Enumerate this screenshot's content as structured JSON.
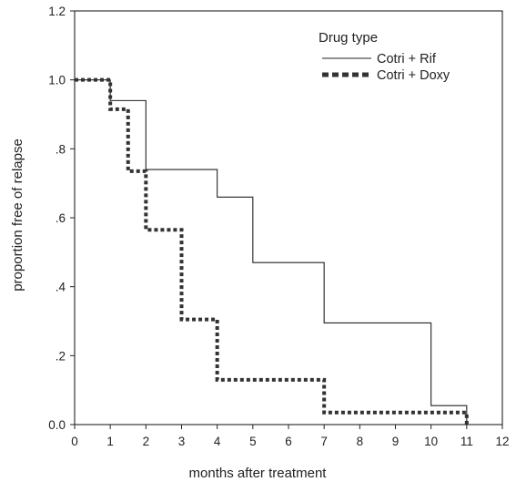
{
  "chart_data": {
    "type": "line",
    "title": "",
    "xlabel": "months after treatment",
    "ylabel": "proportion free of relapse",
    "xlim": [
      0,
      12
    ],
    "ylim": [
      0,
      1.2
    ],
    "x_ticks": [
      0,
      1,
      2,
      3,
      4,
      5,
      6,
      7,
      8,
      9,
      10,
      11,
      12
    ],
    "x_tick_labels": [
      "0",
      "1",
      "2",
      "3",
      "4",
      "5",
      "6",
      "7",
      "8",
      "9",
      "10",
      "11",
      "12"
    ],
    "y_ticks": [
      0,
      0.2,
      0.4,
      0.6,
      0.8,
      1.0,
      1.2
    ],
    "y_tick_labels": [
      "0.0",
      ".2",
      ".4",
      ".6",
      ".8",
      "1.0",
      "1.2"
    ],
    "grid": false,
    "legend": {
      "title": "Drug type",
      "placement": "top-right"
    },
    "series": [
      {
        "name": "Cotri + Rif",
        "style": "solid",
        "color": "#222222",
        "step": true,
        "x": [
          0,
          1,
          2,
          4,
          5,
          7,
          10,
          11
        ],
        "y": [
          1.0,
          0.94,
          0.74,
          0.66,
          0.47,
          0.295,
          0.055,
          0.0
        ]
      },
      {
        "name": "Cotri + Doxy",
        "style": "dotted",
        "color": "#333333",
        "step": true,
        "x": [
          0,
          1,
          1.5,
          2,
          3,
          4,
          7,
          11
        ],
        "y": [
          1.0,
          0.915,
          0.735,
          0.565,
          0.305,
          0.13,
          0.035,
          0.0
        ]
      }
    ]
  }
}
